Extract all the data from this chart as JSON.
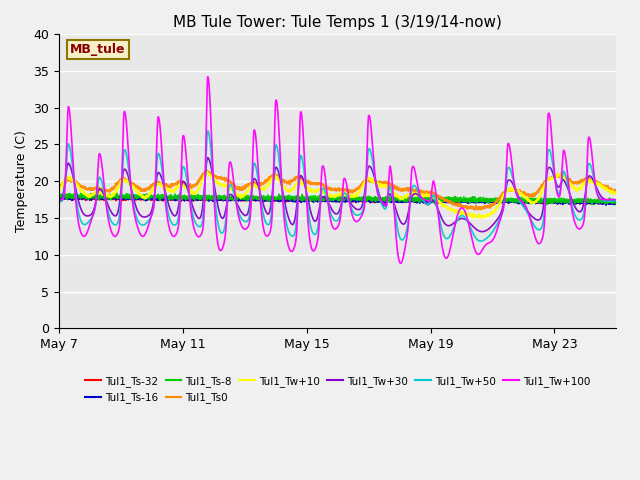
{
  "title": "MB Tule Tower: Tule Temps 1 (3/19/14-now)",
  "ylabel": "Temperature (C)",
  "ylim": [
    0,
    40
  ],
  "yticks": [
    0,
    5,
    10,
    15,
    20,
    25,
    30,
    35,
    40
  ],
  "plot_bg_color": "#e8e8e8",
  "fig_bg_color": "#f0f0f0",
  "legend_label": "MB_tule",
  "legend_box_color": "#f5f0c8",
  "legend_box_edge_color": "#8b7500",
  "legend_text_color": "#8b0000",
  "series": [
    {
      "label": "Tul1_Ts-32",
      "color": "#ff0000",
      "lw": 1.2
    },
    {
      "label": "Tul1_Ts-16",
      "color": "#0000cc",
      "lw": 1.2
    },
    {
      "label": "Tul1_Ts-8",
      "color": "#00cc00",
      "lw": 1.2
    },
    {
      "label": "Tul1_Ts0",
      "color": "#ff8800",
      "lw": 1.2
    },
    {
      "label": "Tul1_Tw+10",
      "color": "#ffff00",
      "lw": 1.2
    },
    {
      "label": "Tul1_Tw+30",
      "color": "#8800cc",
      "lw": 1.2
    },
    {
      "label": "Tul1_Tw+50",
      "color": "#00cccc",
      "lw": 1.2
    },
    {
      "label": "Tul1_Tw+100",
      "color": "#ff00ff",
      "lw": 1.2
    }
  ],
  "xtick_labels": [
    "May 7",
    "May 11",
    "May 15",
    "May 19",
    "May 23"
  ],
  "xtick_positions": [
    0,
    4,
    8,
    12,
    16
  ],
  "num_days": 18,
  "spike_days": [
    0.3,
    1.3,
    2.1,
    3.2,
    4.0,
    4.8,
    5.5,
    6.3,
    7.0,
    7.8,
    8.5,
    9.2,
    10.0,
    10.7,
    11.4,
    12.1,
    14.5,
    15.8,
    16.3,
    17.1
  ],
  "spike_amps": [
    13,
    7,
    14,
    12,
    11,
    20,
    8,
    12,
    16,
    16,
    8,
    5,
    12,
    8,
    6,
    4,
    8,
    14,
    7,
    10
  ],
  "trough_days": [
    0.8,
    1.8,
    2.7,
    3.7,
    4.5,
    5.2,
    6.0,
    6.7,
    7.5,
    8.2,
    8.9,
    9.6,
    11.0,
    12.5,
    13.5,
    14.0,
    15.5,
    16.8
  ],
  "trough_depths": [
    5,
    5,
    5,
    5,
    5,
    7,
    4,
    5,
    7,
    7,
    4,
    3,
    9,
    8,
    7,
    5,
    6,
    4
  ]
}
